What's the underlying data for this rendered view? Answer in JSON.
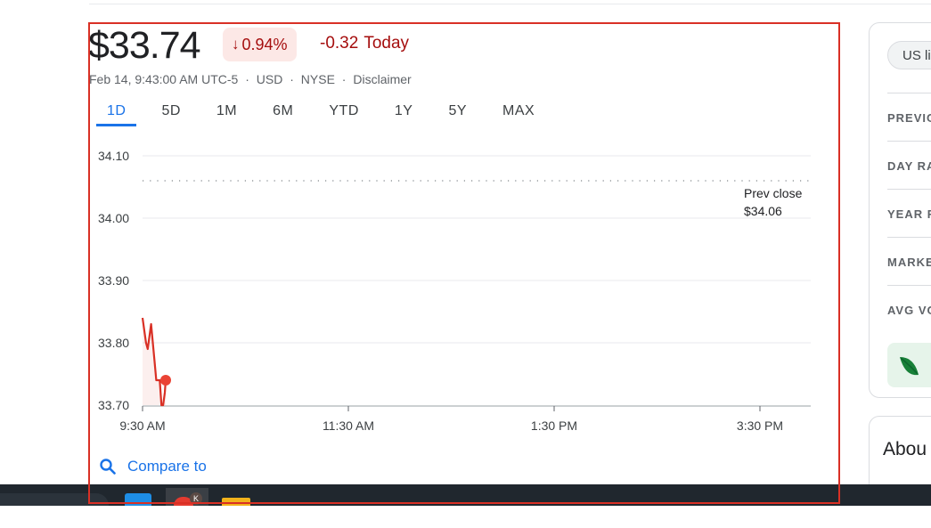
{
  "quote": {
    "price": "$33.74",
    "percent_change": "0.94%",
    "change_value": "-0.32",
    "change_period": "Today",
    "timestamp": "Feb 14, 9:43:00 AM UTC-5",
    "currency": "USD",
    "exchange": "NYSE",
    "disclaimer": "Disclaimer",
    "sep": "·"
  },
  "tabs": [
    "1D",
    "5D",
    "1M",
    "6M",
    "YTD",
    "1Y",
    "5Y",
    "MAX"
  ],
  "active_tab": "1D",
  "chart_data": {
    "type": "line",
    "y_ticks": [
      "34.10",
      "34.00",
      "33.90",
      "33.80",
      "33.70"
    ],
    "x_ticks": [
      "9:30 AM",
      "11:30 AM",
      "1:30 PM",
      "3:30 PM"
    ],
    "ylim": [
      33.7,
      34.1
    ],
    "x_range_minutes": [
      0,
      390
    ],
    "grid": true,
    "series": [
      {
        "points": [
          {
            "t": 0,
            "v": 33.84
          },
          {
            "t": 2,
            "v": 33.8
          },
          {
            "t": 3,
            "v": 33.79
          },
          {
            "t": 5,
            "v": 33.83
          },
          {
            "t": 7,
            "v": 33.77
          },
          {
            "t": 8,
            "v": 33.74
          },
          {
            "t": 10,
            "v": 33.74
          },
          {
            "t": 11,
            "v": 33.7
          },
          {
            "t": 12,
            "v": 33.7
          },
          {
            "t": 13,
            "v": 33.72
          },
          {
            "t": 13.5,
            "v": 33.74
          }
        ],
        "color": "#d93025"
      }
    ],
    "prev_close": {
      "label": "Prev close",
      "value_label": "$34.06",
      "value": 34.06
    }
  },
  "compare": {
    "label": "Compare to"
  },
  "side_panel": {
    "chip": "US li",
    "stats": [
      "PREVIO",
      "DAY RA",
      "YEAR R",
      "MARKE",
      "AVG VO"
    ]
  },
  "about": {
    "title": "Abou"
  },
  "taskbar": {
    "badge": "K"
  },
  "colors": {
    "negative": "#a50e0e",
    "negative_bg": "#fce8e6",
    "accent": "#1a73e8",
    "line": "#d93025"
  }
}
